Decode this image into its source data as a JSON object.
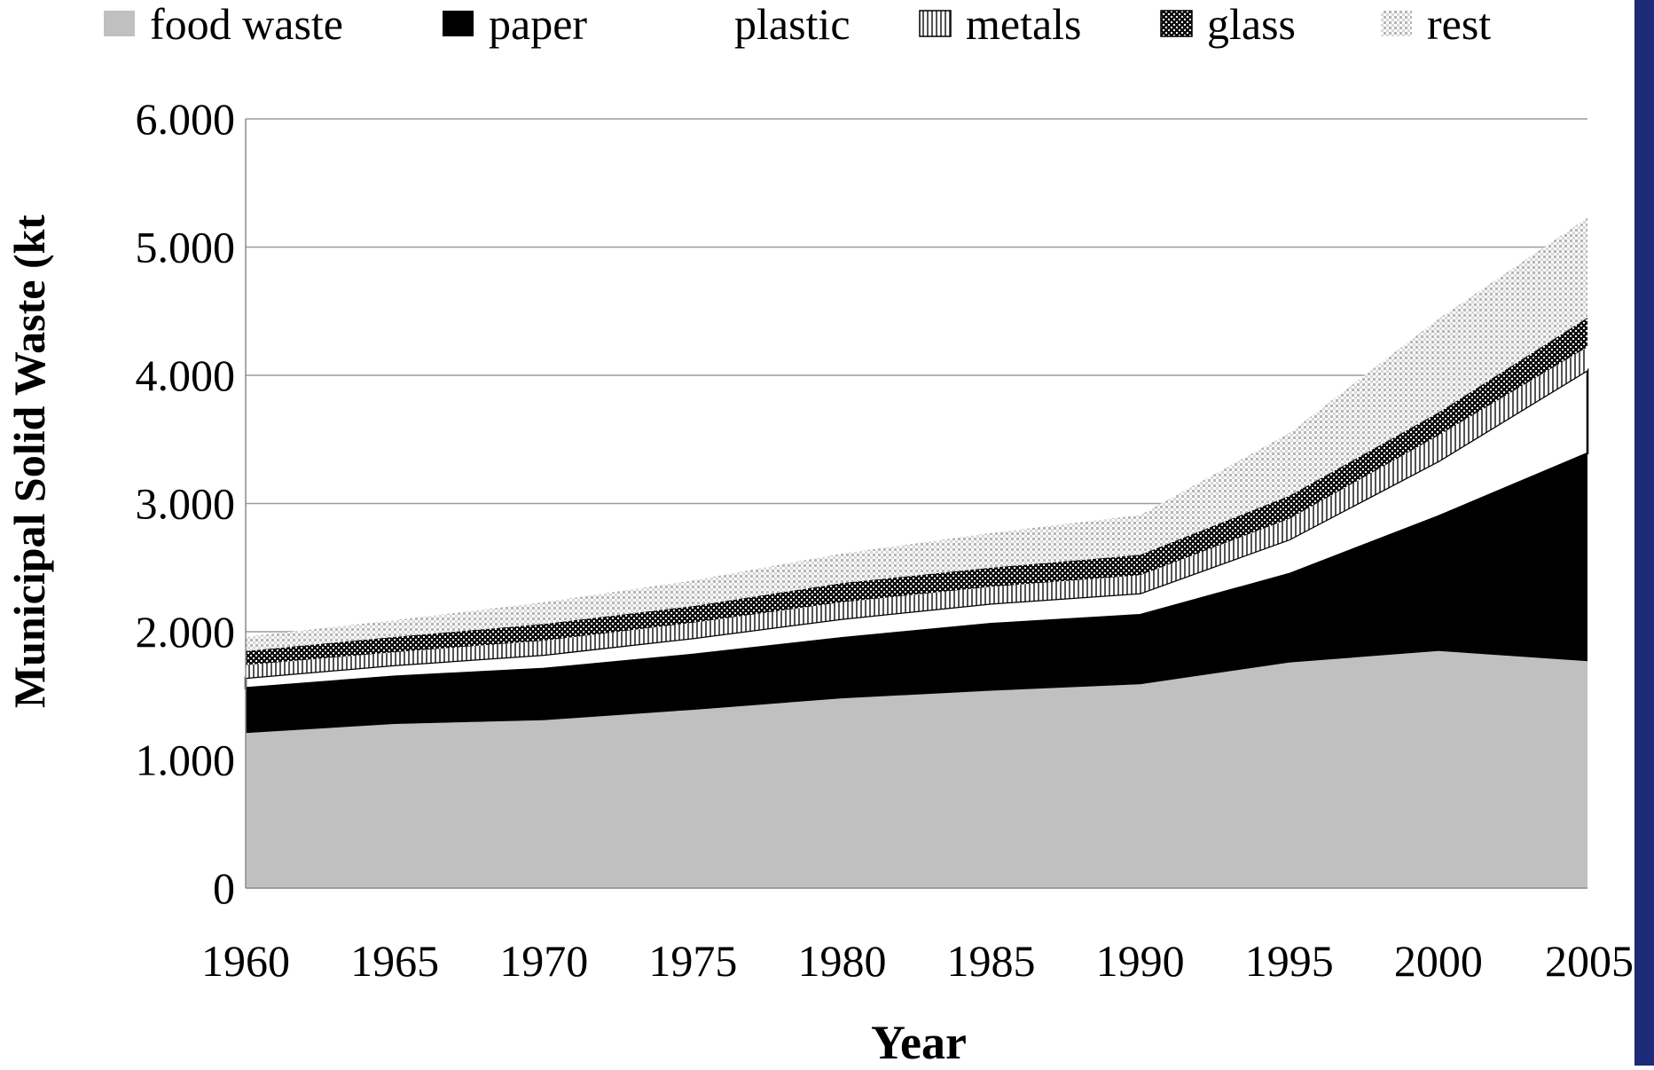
{
  "chart_data": {
    "type": "area",
    "stacked": true,
    "x": [
      1960,
      1965,
      1970,
      1975,
      1980,
      1985,
      1990,
      1995,
      2000,
      2005
    ],
    "series": [
      {
        "name": "food waste",
        "values": [
          1210,
          1280,
          1310,
          1390,
          1480,
          1540,
          1590,
          1760,
          1850,
          1770
        ],
        "fill": "solid-light-gray"
      },
      {
        "name": "paper",
        "values": [
          350,
          370,
          400,
          430,
          470,
          520,
          540,
          690,
          1050,
          1620
        ],
        "fill": "solid-black"
      },
      {
        "name": "plastic",
        "values": [
          80,
          90,
          110,
          130,
          150,
          160,
          170,
          270,
          430,
          650
        ],
        "fill": "white"
      },
      {
        "name": "metals",
        "values": [
          100,
          100,
          110,
          120,
          130,
          130,
          140,
          160,
          200,
          180
        ],
        "fill": "vertical-stripes"
      },
      {
        "name": "glass",
        "values": [
          110,
          120,
          130,
          130,
          150,
          150,
          160,
          180,
          180,
          230
        ],
        "fill": "dense-checker"
      },
      {
        "name": "rest",
        "values": [
          110,
          130,
          170,
          200,
          230,
          270,
          310,
          490,
          730,
          780
        ],
        "fill": "light-dots"
      }
    ],
    "ylabel": "Municipal Solid Waste (kt",
    "xlabel": "Year",
    "ylim": [
      0,
      6000
    ],
    "yticks": [
      0,
      1000,
      2000,
      3000,
      4000,
      5000,
      6000
    ],
    "ytick_labels": [
      "0",
      "1.000",
      "2.000",
      "3.000",
      "4.000",
      "5.000",
      "6.000"
    ],
    "xtick_labels": [
      "1960",
      "1965",
      "1970",
      "1975",
      "1980",
      "1985",
      "1990",
      "1995",
      "2000",
      "2005"
    ],
    "grid": "horizontal",
    "legend_position": "top"
  },
  "colors": {
    "food_waste": "#c0c0c0",
    "paper": "#000000",
    "plastic": "#ffffff",
    "background": "#ffffff",
    "gridline": "#9a9a9a",
    "side_bar": "#1c2a78"
  }
}
